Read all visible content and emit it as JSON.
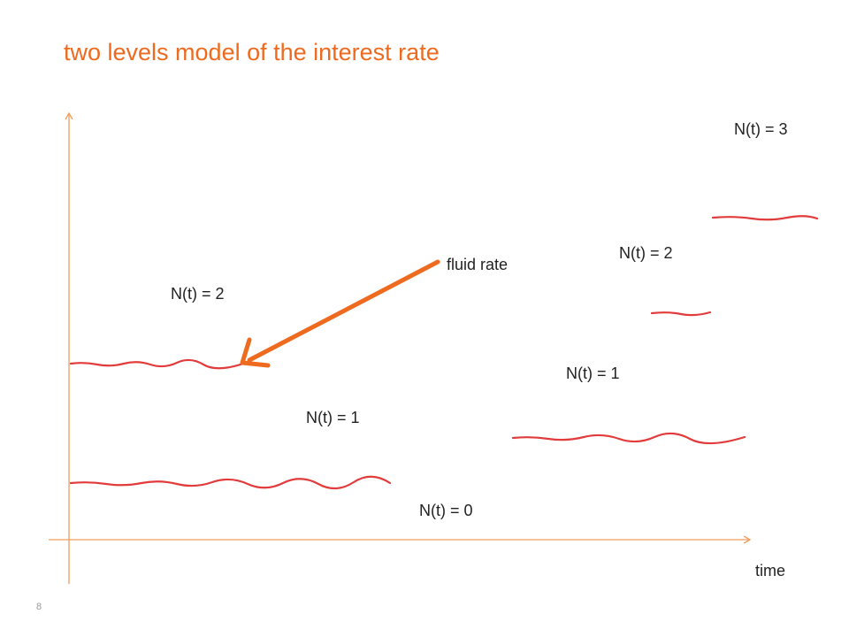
{
  "slide": {
    "title": "two levels model of the interest rate",
    "page_number": "8"
  },
  "axes": {
    "x_label": "time",
    "color": "#f29c5c"
  },
  "levels": {
    "color": "#e23b3b",
    "labels": {
      "left_n2": "N(t) = 2",
      "left_n1": "N(t) = 1",
      "mid_n0": "N(t) = 0",
      "right_n1": "N(t) = 1",
      "right_n2": "N(t) = 2",
      "right_n3": "N(t) = 3"
    }
  },
  "annotation": {
    "text": "fluid rate",
    "arrow_color": "#ee6a1f"
  },
  "colors": {
    "title": "#ee6a1f",
    "text": "#222222"
  }
}
